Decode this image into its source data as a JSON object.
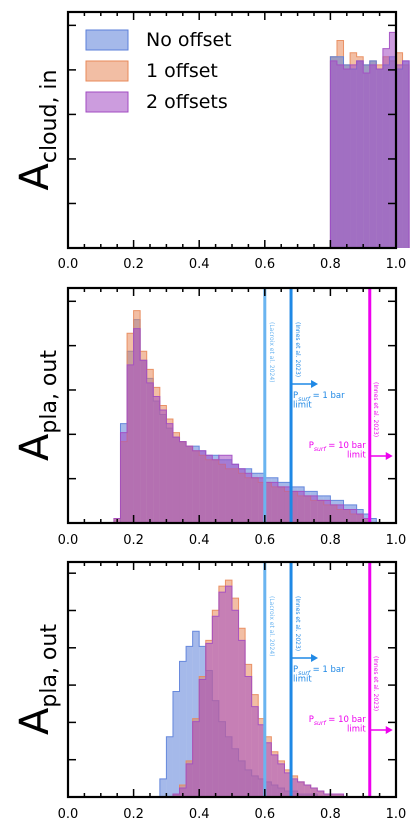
{
  "chart_data": [
    {
      "type": "area",
      "ylabel": "A_cloud, in",
      "xlim": [
        0.0,
        1.0
      ],
      "xticks": [
        "0.0",
        "0.2",
        "0.4",
        "0.6",
        "0.8",
        "1.0"
      ],
      "legend": {
        "placement": "top-left",
        "entries": [
          "No offset",
          "1 offset",
          "2 offsets"
        ]
      },
      "bin_width": 0.02,
      "x_start": 0.8,
      "ylim": [
        0,
        58
      ],
      "series": [
        {
          "name": "No offset",
          "color": "#5b7fd9",
          "values": [
            47,
            47,
            45,
            44,
            46,
            45,
            46,
            44,
            45,
            47,
            44,
            46
          ]
        },
        {
          "name": "1 offset",
          "color": "#e8895a",
          "values": [
            47,
            51,
            45,
            48,
            47,
            45,
            46,
            45,
            47,
            46,
            48,
            45
          ]
        },
        {
          "name": "2 offsets",
          "color": "#a24bc2",
          "values": [
            46,
            45,
            44,
            45,
            46,
            43,
            45,
            44,
            49,
            53,
            45,
            46
          ]
        }
      ],
      "vlines": []
    },
    {
      "type": "area",
      "ylabel": "A_pla, out",
      "xlim": [
        0.0,
        1.0
      ],
      "xticks": [
        "0.0",
        "0.2",
        "0.4",
        "0.6",
        "0.8",
        "1.0"
      ],
      "bin_width": 0.02,
      "x_start": 0.14,
      "ylim": [
        0,
        52
      ],
      "series": [
        {
          "name": "No offset",
          "color": "#5b7fd9",
          "values": [
            0,
            22,
            38,
            45,
            36,
            32,
            27,
            24,
            21,
            19,
            18,
            17,
            17,
            16,
            15,
            15,
            14,
            14,
            13,
            12,
            12,
            11,
            11,
            10,
            10,
            9,
            9,
            8,
            8,
            7,
            7,
            6,
            6,
            5,
            5,
            4,
            4,
            3,
            2,
            1
          ]
        },
        {
          "name": "1 offset",
          "color": "#e8895a",
          "values": [
            1,
            18,
            42,
            47,
            38,
            34,
            30,
            26,
            23,
            20,
            18,
            17,
            16,
            15,
            14,
            14,
            13,
            12,
            12,
            11,
            10,
            10,
            9,
            9,
            8,
            8,
            7,
            7,
            6,
            6,
            5,
            5,
            4,
            4,
            3,
            3,
            2,
            2,
            1,
            0
          ]
        },
        {
          "name": "2 offsets",
          "color": "#a24bc2",
          "values": [
            1,
            20,
            35,
            43,
            36,
            31,
            28,
            25,
            22,
            19,
            18,
            17,
            16,
            16,
            15,
            14,
            15,
            15,
            13,
            12,
            11,
            10,
            10,
            9,
            9,
            8,
            8,
            7,
            7,
            6,
            6,
            5,
            5,
            4,
            4,
            3,
            3,
            2,
            1,
            0
          ]
        }
      ],
      "vlines": [
        {
          "x": 0.6,
          "color": "#6ab4f0",
          "label": "(Lacroix et al. 2024)"
        },
        {
          "x": 0.68,
          "color": "#1f88e5",
          "label": "(Innes et al. 2023)"
        },
        {
          "x": 0.92,
          "color": "#ee00ee",
          "label": "(Innes et al. 2023)"
        }
      ],
      "annotations": [
        {
          "x": 0.68,
          "text": "P_surf = 1 bar\nlimit",
          "color": "#1f88e5"
        },
        {
          "x": 0.92,
          "text": "P_surf = 10 bar\nlimit",
          "color": "#ee00ee"
        }
      ]
    },
    {
      "type": "area",
      "ylabel": "A_pla, out",
      "xlim": [
        0.0,
        1.0
      ],
      "xticks": [
        "0.0",
        "0.2",
        "0.4",
        "0.6",
        "0.8",
        "1.0"
      ],
      "bin_width": 0.02,
      "x_start": 0.28,
      "ylim": [
        0,
        78
      ],
      "series": [
        {
          "name": "No offset",
          "color": "#5b7fd9",
          "values": [
            6,
            20,
            35,
            45,
            50,
            55,
            50,
            42,
            32,
            25,
            20,
            16,
            12,
            9,
            7,
            6,
            5,
            4,
            3,
            2,
            2,
            1,
            1,
            1,
            0,
            0,
            0,
            0,
            0,
            0
          ]
        },
        {
          "name": "1 offset",
          "color": "#e8895a",
          "values": [
            0,
            0,
            1,
            4,
            12,
            26,
            40,
            52,
            62,
            70,
            72,
            66,
            56,
            44,
            34,
            26,
            20,
            15,
            12,
            9,
            7,
            5,
            4,
            3,
            2,
            1,
            1,
            1,
            0,
            0
          ]
        },
        {
          "name": "2 offsets",
          "color": "#a24bc2",
          "values": [
            0,
            0,
            1,
            3,
            11,
            25,
            39,
            51,
            60,
            68,
            70,
            62,
            52,
            40,
            30,
            24,
            18,
            14,
            11,
            8,
            6,
            5,
            4,
            3,
            2,
            1,
            1,
            1,
            0,
            0
          ]
        }
      ],
      "vlines": [
        {
          "x": 0.6,
          "color": "#6ab4f0",
          "label": "(Lacroix et al. 2024)"
        },
        {
          "x": 0.68,
          "color": "#1f88e5",
          "label": "(Innes et al. 2023)"
        },
        {
          "x": 0.92,
          "color": "#ee00ee",
          "label": "(Innes et al. 2023)"
        }
      ],
      "annotations": [
        {
          "x": 0.68,
          "text": "P_surf = 1 bar\nlimit",
          "color": "#1f88e5"
        },
        {
          "x": 0.92,
          "text": "P_surf = 10 bar\nlimit",
          "color": "#ee00ee"
        }
      ]
    }
  ]
}
